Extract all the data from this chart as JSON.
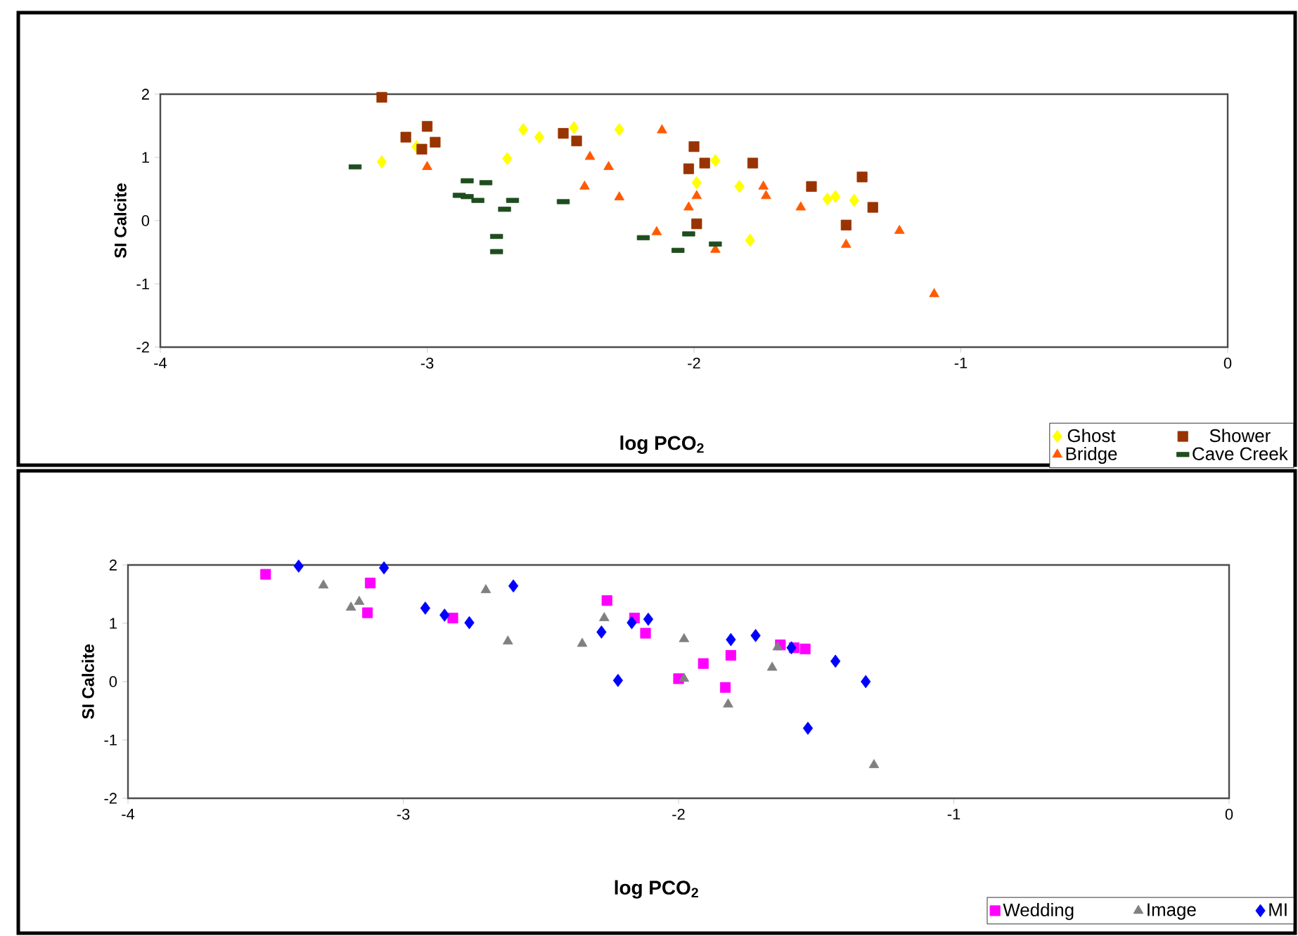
{
  "chart_data": [
    {
      "type": "scatter",
      "xlabel": "log PCO$_{2}$",
      "ylabel": "SI Calcite",
      "xlim": [
        -4,
        0
      ],
      "ylim": [
        -2,
        2
      ],
      "xticks": [
        -4,
        -3,
        -2,
        -1,
        0
      ],
      "yticks": [
        -2,
        -1,
        0,
        1,
        2
      ],
      "legend": "bottom right",
      "grid": false,
      "series": [
        {
          "name": "Ghost",
          "color": "#ffff00",
          "marker": "diamond",
          "x": [
            -3.17,
            -3.04,
            -2.7,
            -2.64,
            -2.58,
            -2.45,
            -2.28,
            -1.99,
            -1.92,
            -1.83,
            -1.79,
            -1.5,
            -1.47,
            -1.4
          ],
          "values": [
            0.93,
            1.17,
            0.98,
            1.44,
            1.32,
            1.47,
            1.44,
            0.6,
            0.95,
            0.54,
            -0.31,
            0.34,
            0.38,
            0.32
          ]
        },
        {
          "name": "Shower",
          "color": "#993300",
          "marker": "square",
          "x": [
            -3.17,
            -3.08,
            -3.0,
            -3.02,
            -2.97,
            -2.49,
            -2.44,
            -2.0,
            -2.02,
            -1.96,
            -1.99,
            -1.78,
            -1.56,
            -1.37,
            -1.33,
            -1.43
          ],
          "values": [
            1.95,
            1.32,
            1.49,
            1.13,
            1.24,
            1.38,
            1.26,
            1.17,
            0.82,
            0.91,
            -0.05,
            0.91,
            0.54,
            0.69,
            0.21,
            -0.07
          ]
        },
        {
          "name": "Bridge",
          "color": "#ff5a00",
          "marker": "triangle",
          "x": [
            -3.0,
            -2.39,
            -2.41,
            -2.32,
            -2.28,
            -2.12,
            -2.14,
            -1.99,
            -2.02,
            -1.92,
            -1.74,
            -1.73,
            -1.6,
            -1.43,
            -1.23,
            -1.1
          ],
          "values": [
            0.85,
            1.01,
            0.54,
            0.85,
            0.37,
            1.43,
            -0.18,
            0.39,
            0.21,
            -0.46,
            0.54,
            0.39,
            0.21,
            -0.38,
            -0.16,
            -1.16
          ]
        },
        {
          "name": "Cave Creek",
          "color": "#1e4d1e",
          "x": [
            -3.27,
            -2.85,
            -2.78,
            -2.88,
            -2.85,
            -2.81,
            -2.71,
            -2.68,
            -2.74,
            -2.74,
            -2.49,
            -2.19,
            -2.06,
            -2.02,
            -1.92
          ],
          "values": [
            0.85,
            0.63,
            0.6,
            0.4,
            0.38,
            0.32,
            0.18,
            0.32,
            -0.25,
            -0.49,
            0.3,
            -0.27,
            -0.47,
            -0.21,
            -0.37
          ]
        }
      ]
    },
    {
      "type": "scatter",
      "xlabel": "log PCO$_{2}$",
      "ylabel": "SI Calcite",
      "xlim": [
        -4,
        0
      ],
      "ylim": [
        -2,
        2
      ],
      "xticks": [
        -4,
        -3,
        -2,
        -1,
        0
      ],
      "yticks": [
        -2,
        -1,
        0,
        1,
        2
      ],
      "legend": "bottom right",
      "grid": false,
      "series": [
        {
          "name": "Wedding",
          "color": "#ff00ff",
          "marker": "square",
          "x": [
            -3.5,
            -3.12,
            -3.13,
            -2.82,
            -2.26,
            -2.16,
            -2.12,
            -2.0,
            -1.91,
            -1.81,
            -1.83,
            -1.63,
            -1.58,
            -1.54
          ],
          "values": [
            1.84,
            1.69,
            1.18,
            1.09,
            1.39,
            1.09,
            0.83,
            0.05,
            0.31,
            0.45,
            -0.1,
            0.63,
            0.58,
            0.56
          ]
        },
        {
          "name": "Image",
          "color": "#808080",
          "marker": "triangle",
          "x": [
            -3.29,
            -3.19,
            -3.16,
            -2.7,
            -2.62,
            -2.35,
            -2.27,
            -1.98,
            -1.98,
            -1.82,
            -1.64,
            -1.66,
            -1.29
          ],
          "values": [
            1.65,
            1.27,
            1.37,
            1.57,
            0.69,
            0.65,
            1.09,
            0.73,
            0.05,
            -0.39,
            0.59,
            0.24,
            -1.43
          ]
        },
        {
          "name": "MI",
          "color": "#0000ff",
          "marker": "diamond",
          "x": [
            -3.38,
            -3.07,
            -2.92,
            -2.85,
            -2.76,
            -2.6,
            -2.28,
            -2.22,
            -2.17,
            -2.11,
            -1.81,
            -1.72,
            -1.59,
            -1.43,
            -1.32,
            -1.53
          ],
          "values": [
            1.98,
            1.95,
            1.26,
            1.14,
            1.01,
            1.64,
            0.85,
            0.02,
            1.01,
            1.07,
            0.72,
            0.79,
            0.58,
            0.35,
            0.0,
            -0.8
          ]
        }
      ]
    }
  ]
}
